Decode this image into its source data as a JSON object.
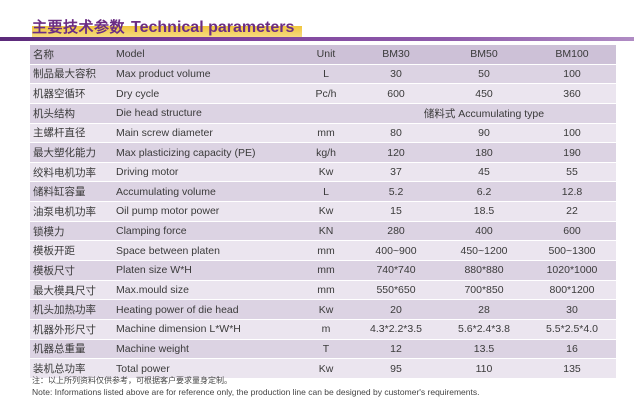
{
  "header": {
    "title_zh": "主要技术参数",
    "title_en": "Technical parameters"
  },
  "table": {
    "header": {
      "zh": "名称",
      "en": "Model",
      "unit": "Unit",
      "models": [
        "BM30",
        "BM50",
        "BM100"
      ]
    },
    "rows": [
      {
        "zh": "制品最大容积",
        "en": "Max product volume",
        "unit": "L",
        "values": [
          "30",
          "50",
          "100"
        ]
      },
      {
        "zh": "机器空循环",
        "en": "Dry cycle",
        "unit": "Pc/h",
        "values": [
          "600",
          "450",
          "360"
        ]
      },
      {
        "zh": "机头结构",
        "en": "Die head structure",
        "unit": "",
        "span": "储料式 Accumulating type"
      },
      {
        "zh": "主螺杆直径",
        "en": "Main screw diameter",
        "unit": "mm",
        "values": [
          "80",
          "90",
          "100"
        ]
      },
      {
        "zh": "最大塑化能力",
        "en": "Max plasticizing capacity (PE)",
        "unit": "kg/h",
        "values": [
          "120",
          "180",
          "190"
        ]
      },
      {
        "zh": "绞料电机功率",
        "en": "Driving motor",
        "unit": "Kw",
        "values": [
          "37",
          "45",
          "55"
        ]
      },
      {
        "zh": "储料缸容量",
        "en": "Accumulating volume",
        "unit": "L",
        "values": [
          "5.2",
          "6.2",
          "12.8"
        ]
      },
      {
        "zh": "油泵电机功率",
        "en": "Oil pump motor power",
        "unit": "Kw",
        "values": [
          "15",
          "18.5",
          "22"
        ]
      },
      {
        "zh": "锁模力",
        "en": "Clamping force",
        "unit": "KN",
        "values": [
          "280",
          "400",
          "600"
        ]
      },
      {
        "zh": "模板开距",
        "en": "Space between platen",
        "unit": "mm",
        "values": [
          "400~900",
          "450~1200",
          "500~1300"
        ]
      },
      {
        "zh": "模板尺寸",
        "en": "Platen size  W*H",
        "unit": "mm",
        "values": [
          "740*740",
          "880*880",
          "1020*1000"
        ]
      },
      {
        "zh": "最大模具尺寸",
        "en": "Max.mould size",
        "unit": "mm",
        "values": [
          "550*650",
          "700*850",
          "800*1200"
        ]
      },
      {
        "zh": "机头加热功率",
        "en": "Heating power of die head",
        "unit": "Kw",
        "values": [
          "20",
          "28",
          "30"
        ]
      },
      {
        "zh": "机器外形尺寸",
        "en": "Machine dimension L*W*H",
        "unit": "m",
        "values": [
          "4.3*2.2*3.5",
          "5.6*2.4*3.8",
          "5.5*2.5*4.0"
        ]
      },
      {
        "zh": "机器总重量",
        "en": "Machine weight",
        "unit": "T",
        "values": [
          "12",
          "13.5",
          "16"
        ]
      },
      {
        "zh": "装机总功率",
        "en": "Total power",
        "unit": "Kw",
        "values": [
          "95",
          "110",
          "135"
        ]
      }
    ]
  },
  "footnote": {
    "zh": "注：以上所列资料仅供参考，可根据客户要求量身定制。",
    "en": "Note: Informations listed above are for reference only, the production line can be designed by customer's requirements."
  },
  "colors": {
    "title_purple": "#6b2d84",
    "title_highlight": "#f0c53c",
    "bar_purple": "#5b2a7a",
    "row_light": "#ebe5ef",
    "row_dark": "#dcd3e3"
  }
}
